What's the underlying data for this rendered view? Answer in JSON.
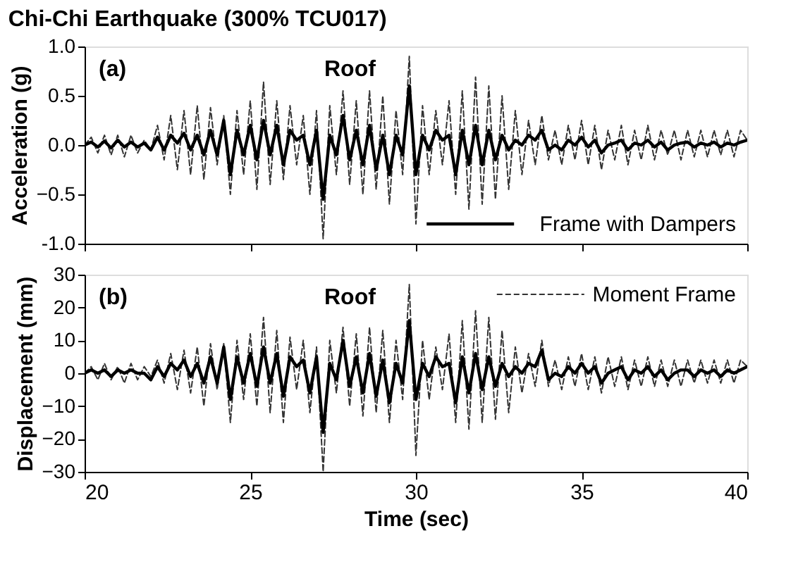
{
  "chart_data": [
    {
      "type": "line",
      "title": "Chi-Chi Earthquake (300% TCU017)",
      "ylabel": "Acceleration (g)",
      "annotations": [
        "(a)",
        "Roof"
      ],
      "legend": "bottom right",
      "tick_labels": "y",
      "xlim": [
        20,
        40
      ],
      "xticks": [
        20,
        25,
        30,
        35,
        40
      ],
      "ylim": [
        -1.0,
        1.0
      ],
      "yticks": [
        {
          "value": -1.0,
          "label": "-1.0"
        },
        -0.5,
        {
          "value": 0,
          "label": "0.0"
        },
        0.5,
        {
          "value": 1.0,
          "label": "1.0"
        }
      ],
      "x": [
        20,
        20.2,
        20.4,
        20.6,
        20.8,
        21,
        21.2,
        21.4,
        21.6,
        21.8,
        22,
        22.2,
        22.4,
        22.6,
        22.8,
        23,
        23.2,
        23.4,
        23.6,
        23.8,
        24,
        24.2,
        24.4,
        24.6,
        24.8,
        25,
        25.2,
        25.4,
        25.6,
        25.8,
        26,
        26.2,
        26.4,
        26.6,
        26.8,
        27,
        27.2,
        27.4,
        27.6,
        27.8,
        28,
        28.2,
        28.4,
        28.6,
        28.8,
        29,
        29.2,
        29.4,
        29.6,
        29.8,
        30,
        30.2,
        30.4,
        30.6,
        30.8,
        31,
        31.2,
        31.4,
        31.6,
        31.8,
        32,
        32.2,
        32.4,
        32.6,
        32.8,
        33,
        33.2,
        33.4,
        33.6,
        33.8,
        34,
        34.2,
        34.4,
        34.6,
        34.8,
        35,
        35.2,
        35.4,
        35.6,
        35.8,
        36,
        36.2,
        36.4,
        36.6,
        36.8,
        37,
        37.2,
        37.4,
        37.6,
        37.8,
        38,
        38.2,
        38.4,
        38.6,
        38.8,
        39,
        39.2,
        39.4,
        39.6,
        39.8,
        40
      ],
      "series": [
        {
          "color": "#333333",
          "line_style": "dashed",
          "values": [
            0,
            0.08,
            -0.08,
            0.1,
            -0.1,
            0.1,
            -0.12,
            0.1,
            -0.08,
            0.05,
            -0.05,
            0.2,
            -0.15,
            0.3,
            -0.25,
            0.35,
            -0.3,
            0.4,
            -0.35,
            0.38,
            -0.2,
            0.3,
            -0.5,
            0.35,
            -0.3,
            0.45,
            -0.45,
            0.64,
            -0.4,
            0.45,
            -0.35,
            0.4,
            -0.2,
            0.3,
            -0.5,
            0.35,
            -0.95,
            0.4,
            -0.3,
            0.55,
            -0.4,
            0.45,
            -0.5,
            0.55,
            -0.45,
            0.5,
            -0.6,
            0.35,
            -0.3,
            0.9,
            -0.8,
            0.4,
            -0.3,
            0.35,
            -0.2,
            0.45,
            -0.5,
            0.55,
            -0.65,
            0.69,
            -0.6,
            0.6,
            -0.55,
            0.5,
            -0.45,
            0.35,
            -0.3,
            0.25,
            -0.2,
            0.3,
            -0.15,
            0.15,
            -0.2,
            0.2,
            -0.15,
            0.25,
            -0.2,
            0.2,
            -0.25,
            0.15,
            -0.15,
            0.2,
            -0.2,
            0.15,
            -0.15,
            0.2,
            -0.15,
            0.15,
            -0.1,
            0.15,
            -0.15,
            0.15,
            -0.12,
            0.15,
            -0.12,
            0.15,
            -0.1,
            0.15,
            -0.12,
            0.15,
            0.05
          ]
        },
        {
          "name": "Frame with Dampers",
          "color": "#000000",
          "line_style": "solid",
          "values": [
            0,
            0.03,
            -0.02,
            0.04,
            -0.03,
            0.05,
            -0.02,
            0.03,
            -0.02,
            0.02,
            -0.05,
            0.08,
            -0.05,
            0.1,
            0.02,
            0.12,
            -0.05,
            0.1,
            -0.1,
            0.15,
            -0.1,
            0.25,
            -0.3,
            0.15,
            -0.1,
            0.2,
            -0.15,
            0.25,
            -0.1,
            0.2,
            -0.2,
            0.15,
            0.05,
            0.1,
            -0.2,
            0.15,
            -0.55,
            0.1,
            -0.1,
            0.3,
            -0.15,
            0.15,
            -0.2,
            0.2,
            -0.25,
            0.1,
            -0.3,
            0.1,
            -0.1,
            0.6,
            -0.3,
            0.1,
            -0.05,
            0.15,
            0.05,
            0.1,
            -0.3,
            0.15,
            -0.2,
            0.2,
            -0.2,
            0.15,
            -0.15,
            0.1,
            -0.05,
            0.05,
            0.0,
            0.1,
            0.05,
            0.15,
            -0.05,
            0.0,
            -0.05,
            0.05,
            0.0,
            0.08,
            -0.02,
            0.05,
            -0.08,
            0.0,
            0.02,
            0.05,
            -0.05,
            0.02,
            0.0,
            0.05,
            -0.02,
            0.03,
            -0.05,
            0.0,
            0.02,
            0.03,
            -0.02,
            0.02,
            0.0,
            0.03,
            -0.02,
            0.02,
            0.0,
            0.03,
            0.05
          ]
        }
      ]
    },
    {
      "type": "line",
      "ylabel": "Displacement (mm)",
      "xlabel": "Time (sec)",
      "annotations": [
        "(b)",
        "Roof"
      ],
      "legend": "top right",
      "xlim": [
        20,
        40
      ],
      "xticks": [
        20,
        25,
        30,
        35,
        40
      ],
      "ylim": [
        -30,
        30
      ],
      "yticks": [
        -30,
        -20,
        -10,
        0,
        10,
        20,
        30
      ],
      "x": [
        20,
        20.2,
        20.4,
        20.6,
        20.8,
        21,
        21.2,
        21.4,
        21.6,
        21.8,
        22,
        22.2,
        22.4,
        22.6,
        22.8,
        23,
        23.2,
        23.4,
        23.6,
        23.8,
        24,
        24.2,
        24.4,
        24.6,
        24.8,
        25,
        25.2,
        25.4,
        25.6,
        25.8,
        26,
        26.2,
        26.4,
        26.6,
        26.8,
        27,
        27.2,
        27.4,
        27.6,
        27.8,
        28,
        28.2,
        28.4,
        28.6,
        28.8,
        29,
        29.2,
        29.4,
        29.6,
        29.8,
        30,
        30.2,
        30.4,
        30.6,
        30.8,
        31,
        31.2,
        31.4,
        31.6,
        31.8,
        32,
        32.2,
        32.4,
        32.6,
        32.8,
        33,
        33.2,
        33.4,
        33.6,
        33.8,
        34,
        34.2,
        34.4,
        34.6,
        34.8,
        35,
        35.2,
        35.4,
        35.6,
        35.8,
        36,
        36.2,
        36.4,
        36.6,
        36.8,
        37,
        37.2,
        37.4,
        37.6,
        37.8,
        38,
        38.2,
        38.4,
        38.6,
        38.8,
        39,
        39.2,
        39.4,
        39.6,
        39.8,
        40
      ],
      "series": [
        {
          "name": "Moment Frame",
          "color": "#333333",
          "line_style": "dashed",
          "values": [
            0,
            2,
            -2,
            3,
            -2,
            2,
            -3,
            3,
            -2,
            2,
            -1,
            4,
            -3,
            6,
            -5,
            7,
            -6,
            8,
            -10,
            9,
            -5,
            9,
            -15,
            10,
            -8,
            12,
            -10,
            17,
            -12,
            13,
            -15,
            11,
            -5,
            10,
            -12,
            8,
            -30,
            10,
            -6,
            14,
            -10,
            12,
            -13,
            14,
            -12,
            13,
            -15,
            10,
            -8,
            27,
            -25,
            10,
            -8,
            8,
            -5,
            12,
            -15,
            16,
            -17,
            19,
            -15,
            17,
            -14,
            13,
            -12,
            8,
            -6,
            6,
            -4,
            10,
            -4,
            4,
            -5,
            5,
            -4,
            6,
            -5,
            5,
            -6,
            5,
            -4,
            5,
            -5,
            4,
            -4,
            5,
            -4,
            4,
            -4,
            4,
            -4,
            4,
            -3,
            4,
            -3,
            4,
            -3,
            4,
            -3,
            4,
            2
          ]
        },
        {
          "color": "#000000",
          "line_style": "solid",
          "values": [
            0,
            1,
            0,
            1,
            -1,
            1,
            0,
            1,
            0,
            0,
            -2,
            2,
            -1,
            3,
            1,
            4,
            -1,
            3,
            -3,
            5,
            -3,
            8,
            -8,
            5,
            -3,
            6,
            -4,
            8,
            -3,
            6,
            -7,
            5,
            2,
            4,
            -6,
            5,
            -18,
            3,
            -2,
            10,
            -4,
            5,
            -6,
            6,
            -7,
            4,
            -9,
            3,
            -3,
            16,
            -8,
            3,
            -1,
            5,
            2,
            3,
            -9,
            5,
            -6,
            6,
            -5,
            5,
            -4,
            3,
            -1,
            2,
            0,
            3,
            2,
            7,
            -2,
            0,
            -1,
            2,
            0,
            3,
            0,
            2,
            -3,
            0,
            1,
            2,
            -2,
            1,
            0,
            2,
            -1,
            1,
            -2,
            0,
            1,
            1,
            -1,
            1,
            0,
            1,
            -1,
            1,
            0,
            1,
            2
          ]
        }
      ]
    }
  ]
}
